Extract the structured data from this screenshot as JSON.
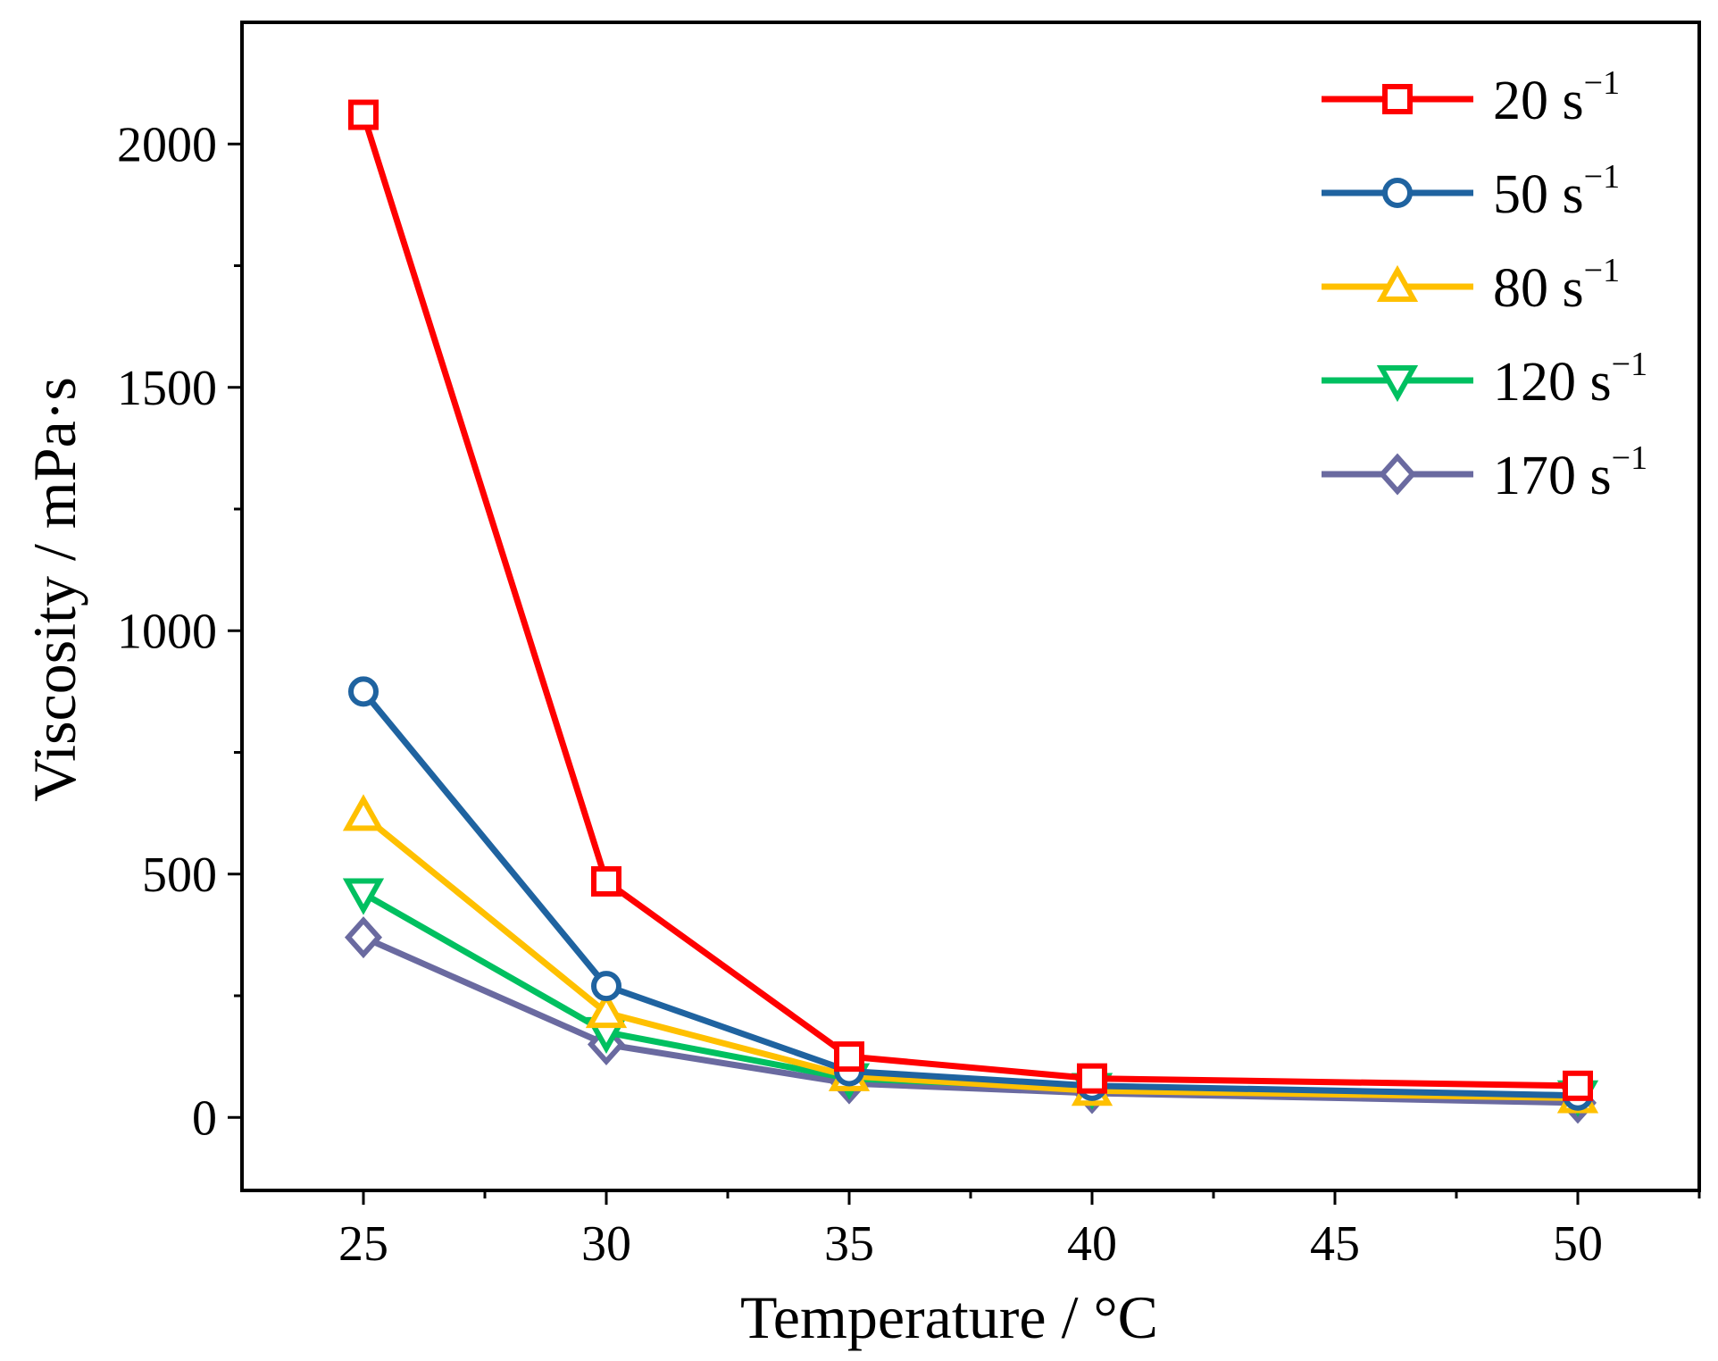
{
  "chart_data": {
    "type": "line",
    "title": "",
    "xlabel": "Temperature / °C",
    "ylabel": "Viscosity / mPa·s",
    "x": [
      25,
      30,
      35,
      40,
      50
    ],
    "xlim": [
      22.5,
      52.5
    ],
    "ylim": [
      -150,
      2250
    ],
    "xticks": [
      25,
      30,
      35,
      40,
      45,
      50
    ],
    "yticks": [
      0,
      500,
      1000,
      1500,
      2000
    ],
    "xtick_labels": [
      "25",
      "30",
      "35",
      "40",
      "45",
      "50"
    ],
    "ytick_labels": [
      "0",
      "500",
      "1000",
      "1500",
      "2000"
    ],
    "grid": false,
    "legend_position": "top-right",
    "series": [
      {
        "name": "20 s",
        "superscript": "−1",
        "color": "#FF0000",
        "marker": "square",
        "values": [
          2060,
          485,
          125,
          80,
          65
        ]
      },
      {
        "name": "50 s",
        "superscript": "−1",
        "color": "#1F63A0",
        "marker": "circle",
        "values": [
          875,
          270,
          95,
          65,
          45
        ]
      },
      {
        "name": "80 s",
        "superscript": "−1",
        "color": "#FFC000",
        "marker": "triangle-up",
        "values": [
          620,
          215,
          85,
          55,
          40
        ]
      },
      {
        "name": "120 s",
        "superscript": "−1",
        "color": "#00C060",
        "marker": "triangle-down",
        "values": [
          460,
          175,
          80,
          60,
          45
        ]
      },
      {
        "name": "170 s",
        "superscript": "−1",
        "color": "#6A6AA0",
        "marker": "diamond",
        "values": [
          370,
          150,
          70,
          50,
          30
        ]
      }
    ]
  }
}
